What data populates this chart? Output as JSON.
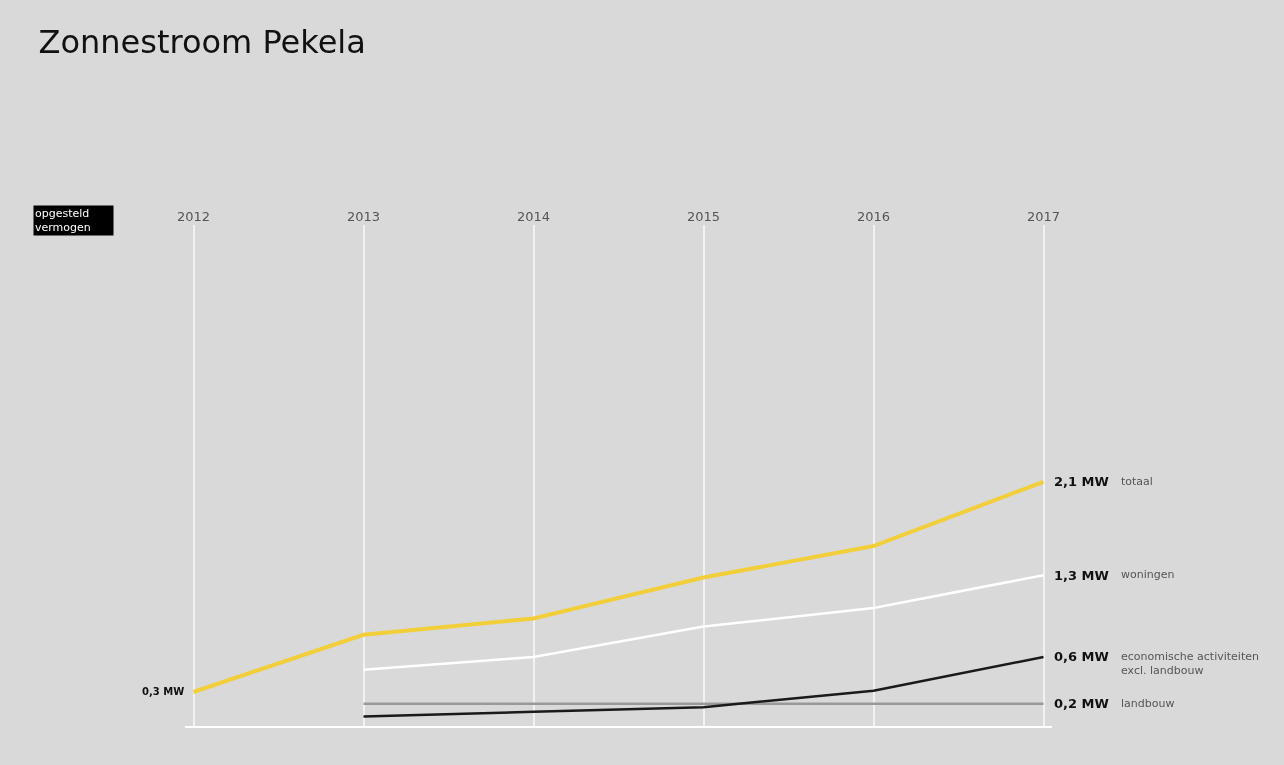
{
  "chart_data": {
    "type": "line",
    "title": "Zonnestroom Pekela",
    "annotations": [
      "opgesteld\nvermogen"
    ],
    "categories": [
      "2012",
      "2013",
      "2014",
      "2015",
      "2016",
      "2017"
    ],
    "ylim": [
      0,
      4.3
    ],
    "grid": "x",
    "legend": false,
    "marker": "none",
    "line_style": "solid",
    "series": [
      {
        "name": "landbouw",
        "color": "#999999",
        "values": [
          null,
          0.2,
          0.2,
          0.2,
          0.2,
          0.2
        ],
        "value_labels": [
          null,
          null,
          null,
          null,
          null,
          "0,2 MW"
        ]
      },
      {
        "name": "economische activiteiten\nexcl. landbouw",
        "color": "#1a1a1a",
        "values": [
          null,
          0.09,
          0.13,
          0.17,
          0.31,
          0.6
        ],
        "value_labels": [
          null,
          null,
          null,
          null,
          null,
          "0,6 MW"
        ]
      },
      {
        "name": "woningen",
        "color": "#ffffff",
        "values": [
          null,
          0.49,
          0.6,
          0.86,
          1.02,
          1.3
        ],
        "value_labels": [
          null,
          null,
          null,
          null,
          null,
          "1,3 MW"
        ]
      },
      {
        "name": "totaal",
        "color": "#f2cf3a",
        "values": [
          0.3,
          0.79,
          0.93,
          1.28,
          1.55,
          2.1
        ],
        "value_labels": [
          "0,3 MW",
          null,
          null,
          null,
          null,
          "2,1 MW"
        ]
      }
    ]
  }
}
